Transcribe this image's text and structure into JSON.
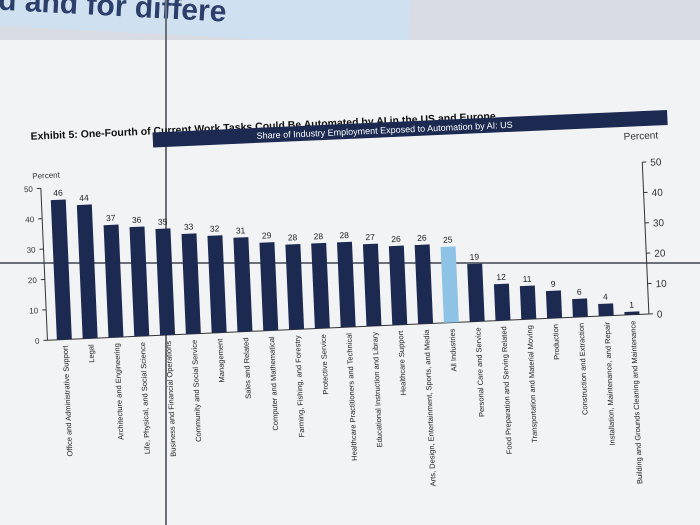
{
  "header_fragment": "d and for differe",
  "chart_data": {
    "type": "bar",
    "title": "Exhibit 5: One-Fourth of Current Work Tasks Could Be Automated by AI in the US and Europe",
    "subtitle": "Share of Industry Employment Exposed to Automation by AI: US",
    "ylabel_left": "Percent",
    "ylabel_right": "Percent",
    "ylim": [
      0,
      50
    ],
    "yticks": [
      0,
      10,
      20,
      30,
      40,
      50
    ],
    "grid": false,
    "categories": [
      "Office and Administrative Support",
      "Legal",
      "Architecture and Engineering",
      "Life, Physical, and Social Science",
      "Business and Financial Operations",
      "Community and Social Service",
      "Management",
      "Sales and Related",
      "Computer and Mathematical",
      "Farming, Fishing, and Forestry",
      "Protective Service",
      "Healthcare Practitioners and Technical",
      "Educational Instruction and Library",
      "Healthcare Support",
      "Arts, Design, Entertainment, Sports, and Media",
      "All Industries",
      "Personal Care and Service",
      "Food Preparation and Serving Related",
      "Transportation and Material Moving",
      "Production",
      "Construction and Extraction",
      "Installation, Maintenance, and Repair",
      "Building and Grounds Cleaning and Maintenance"
    ],
    "values": [
      46,
      44,
      37,
      36,
      35,
      33,
      32,
      31,
      29,
      28,
      28,
      28,
      27,
      26,
      26,
      25,
      19,
      12,
      11,
      9,
      6,
      4,
      1
    ],
    "highlight_category": "All Industries",
    "colors": {
      "bar": "#1c2a52",
      "highlight": "#8fc3e6",
      "banner": "#1c2a52",
      "axis": "#333333"
    }
  }
}
